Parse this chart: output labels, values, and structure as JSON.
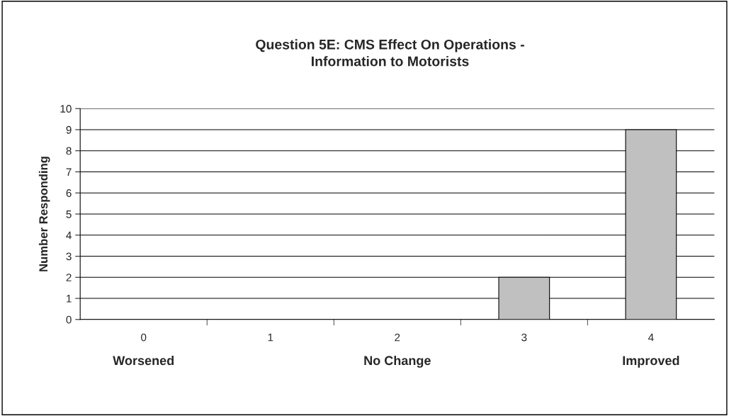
{
  "chart_data": {
    "type": "bar",
    "title": "Question 5E: CMS Effect On Operations -\nInformation to Motorists",
    "ylabel": "Number Responding",
    "categories": [
      "0",
      "1",
      "2",
      "3",
      "4"
    ],
    "values": [
      0,
      0,
      0,
      2,
      9
    ],
    "color": "#c0c0c0",
    "ylim": [
      0,
      10
    ],
    "yticks": [
      0,
      1,
      2,
      3,
      4,
      5,
      6,
      7,
      8,
      9,
      10
    ],
    "grid": "y",
    "legend": false,
    "annotations": [
      "Worsened",
      "No Change",
      "Improved"
    ]
  }
}
